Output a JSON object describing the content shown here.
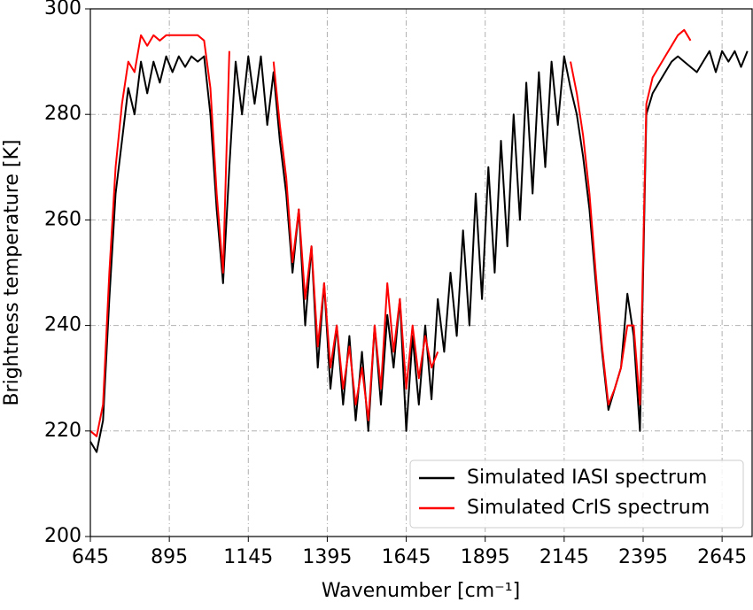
{
  "chart_data": {
    "type": "line",
    "xlabel": "Wavenumber [cm⁻¹]",
    "ylabel": "Brightness temperature [K]",
    "x": [
      645,
      665,
      685,
      705,
      725,
      745,
      765,
      785,
      805,
      825,
      845,
      865,
      885,
      905,
      925,
      945,
      965,
      985,
      1005,
      1025,
      1045,
      1065,
      1085,
      1105,
      1125,
      1145,
      1165,
      1185,
      1205,
      1225,
      1245,
      1265,
      1285,
      1305,
      1325,
      1345,
      1365,
      1385,
      1405,
      1425,
      1445,
      1465,
      1485,
      1505,
      1525,
      1545,
      1565,
      1585,
      1605,
      1625,
      1645,
      1665,
      1685,
      1705,
      1725,
      1745,
      1765,
      1785,
      1805,
      1825,
      1845,
      1865,
      1885,
      1905,
      1925,
      1945,
      1965,
      1985,
      2005,
      2025,
      2045,
      2065,
      2085,
      2105,
      2125,
      2145,
      2165,
      2185,
      2205,
      2225,
      2245,
      2265,
      2285,
      2305,
      2325,
      2345,
      2365,
      2385,
      2405,
      2425,
      2445,
      2465,
      2485,
      2505,
      2525,
      2545,
      2565,
      2585,
      2605,
      2625,
      2645,
      2665,
      2685,
      2705,
      2725
    ],
    "series": [
      {
        "name": "Simulated IASI spectrum",
        "color": "#000000",
        "values": [
          218,
          216,
          222,
          245,
          265,
          275,
          285,
          280,
          290,
          284,
          290,
          286,
          291,
          288,
          291,
          289,
          291,
          290,
          291,
          280,
          262,
          248,
          270,
          290,
          280,
          291,
          282,
          291,
          278,
          288,
          275,
          265,
          250,
          262,
          240,
          255,
          232,
          248,
          228,
          240,
          225,
          238,
          222,
          235,
          220,
          240,
          225,
          242,
          232,
          245,
          220,
          238,
          225,
          240,
          226,
          245,
          235,
          250,
          238,
          258,
          240,
          265,
          245,
          270,
          250,
          275,
          255,
          280,
          260,
          286,
          265,
          288,
          270,
          290,
          278,
          291,
          285,
          280,
          272,
          262,
          248,
          235,
          224,
          228,
          232,
          246,
          238,
          220,
          280,
          284,
          286,
          288,
          290,
          291,
          290,
          289,
          288,
          290,
          292,
          288,
          292,
          290,
          292,
          289,
          292
        ]
      },
      {
        "name": "Simulated CrIS spectrum",
        "color": "#ff0000",
        "values": [
          220,
          219,
          225,
          250,
          270,
          282,
          290,
          288,
          295,
          293,
          295,
          294,
          295,
          295,
          295,
          295,
          295,
          295,
          294,
          285,
          265,
          250,
          292,
          null,
          null,
          null,
          null,
          null,
          null,
          290,
          278,
          268,
          252,
          262,
          245,
          255,
          236,
          248,
          232,
          240,
          228,
          236,
          225,
          232,
          222,
          240,
          228,
          248,
          235,
          245,
          228,
          240,
          230,
          238,
          232,
          235,
          null,
          null,
          null,
          null,
          null,
          null,
          null,
          null,
          null,
          null,
          null,
          null,
          null,
          null,
          null,
          null,
          null,
          null,
          null,
          null,
          290,
          284,
          276,
          265,
          250,
          236,
          225,
          228,
          232,
          240,
          240,
          225,
          282,
          287,
          289,
          291,
          293,
          295,
          296,
          294,
          null,
          null,
          null,
          null,
          null,
          null,
          null,
          null,
          null
        ]
      }
    ],
    "xlim": [
      645,
      2740
    ],
    "ylim": [
      200,
      300
    ],
    "xticks": [
      645,
      895,
      1145,
      1395,
      1645,
      1895,
      2145,
      2395,
      2645
    ],
    "yticks": [
      200,
      220,
      240,
      260,
      280,
      300
    ],
    "grid": true,
    "legend": "lower right"
  }
}
